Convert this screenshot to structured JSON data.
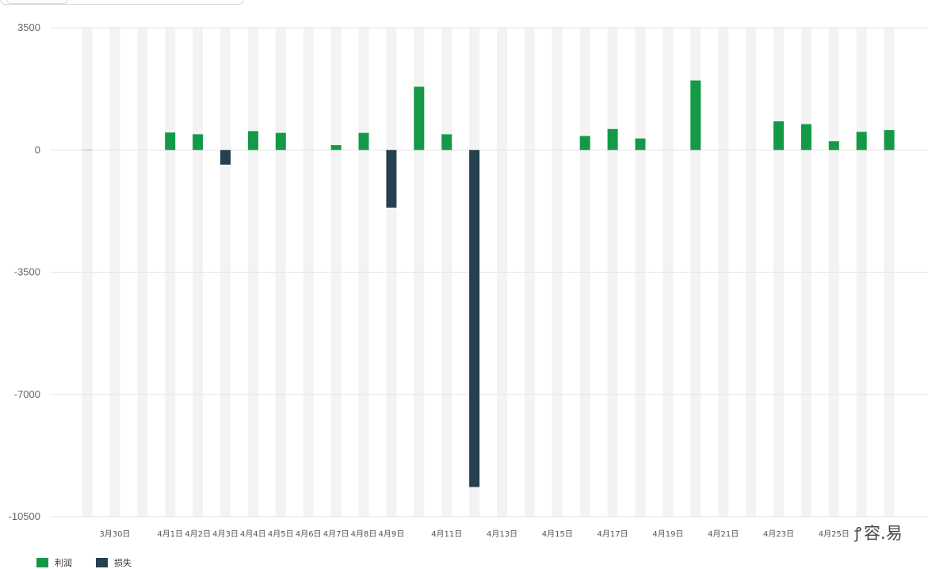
{
  "chart_data": {
    "type": "bar",
    "ylim": [
      -10500,
      3500
    ],
    "yticks": [
      3500,
      0,
      -3500,
      -7000,
      -10500
    ],
    "categories": [
      "",
      "3月30日",
      "",
      "4月1日",
      "4月2日",
      "4月3日",
      "4月4日",
      "4月5日",
      "4月6日",
      "4月7日",
      "4月8日",
      "4月9日",
      "",
      "4月11日",
      "",
      "4月13日",
      "",
      "4月15日",
      "",
      "4月17日",
      "",
      "4月19日",
      "",
      "4月21日",
      "",
      "4月23日",
      "",
      "4月25日",
      "",
      ""
    ],
    "series": [
      {
        "name": "利润",
        "color": "#149a47",
        "values": [
          0,
          0,
          0,
          500,
          450,
          0,
          540,
          490,
          0,
          140,
          490,
          0,
          1810,
          450,
          0,
          0,
          0,
          0,
          400,
          600,
          330,
          0,
          1990,
          0,
          0,
          820,
          740,
          250,
          520,
          570
        ]
      },
      {
        "name": "损失",
        "color": "#27404f",
        "values": [
          0,
          0,
          0,
          0,
          0,
          -420,
          0,
          0,
          0,
          0,
          0,
          -1650,
          0,
          0,
          -9650,
          0,
          0,
          0,
          0,
          0,
          0,
          0,
          0,
          0,
          0,
          0,
          0,
          0,
          0,
          0
        ]
      }
    ],
    "background_stripes": true,
    "legend_position": "bottom-left"
  },
  "legend": {
    "profit_label": "利润",
    "loss_label": "损失"
  },
  "watermark": {
    "text": "容.易"
  }
}
